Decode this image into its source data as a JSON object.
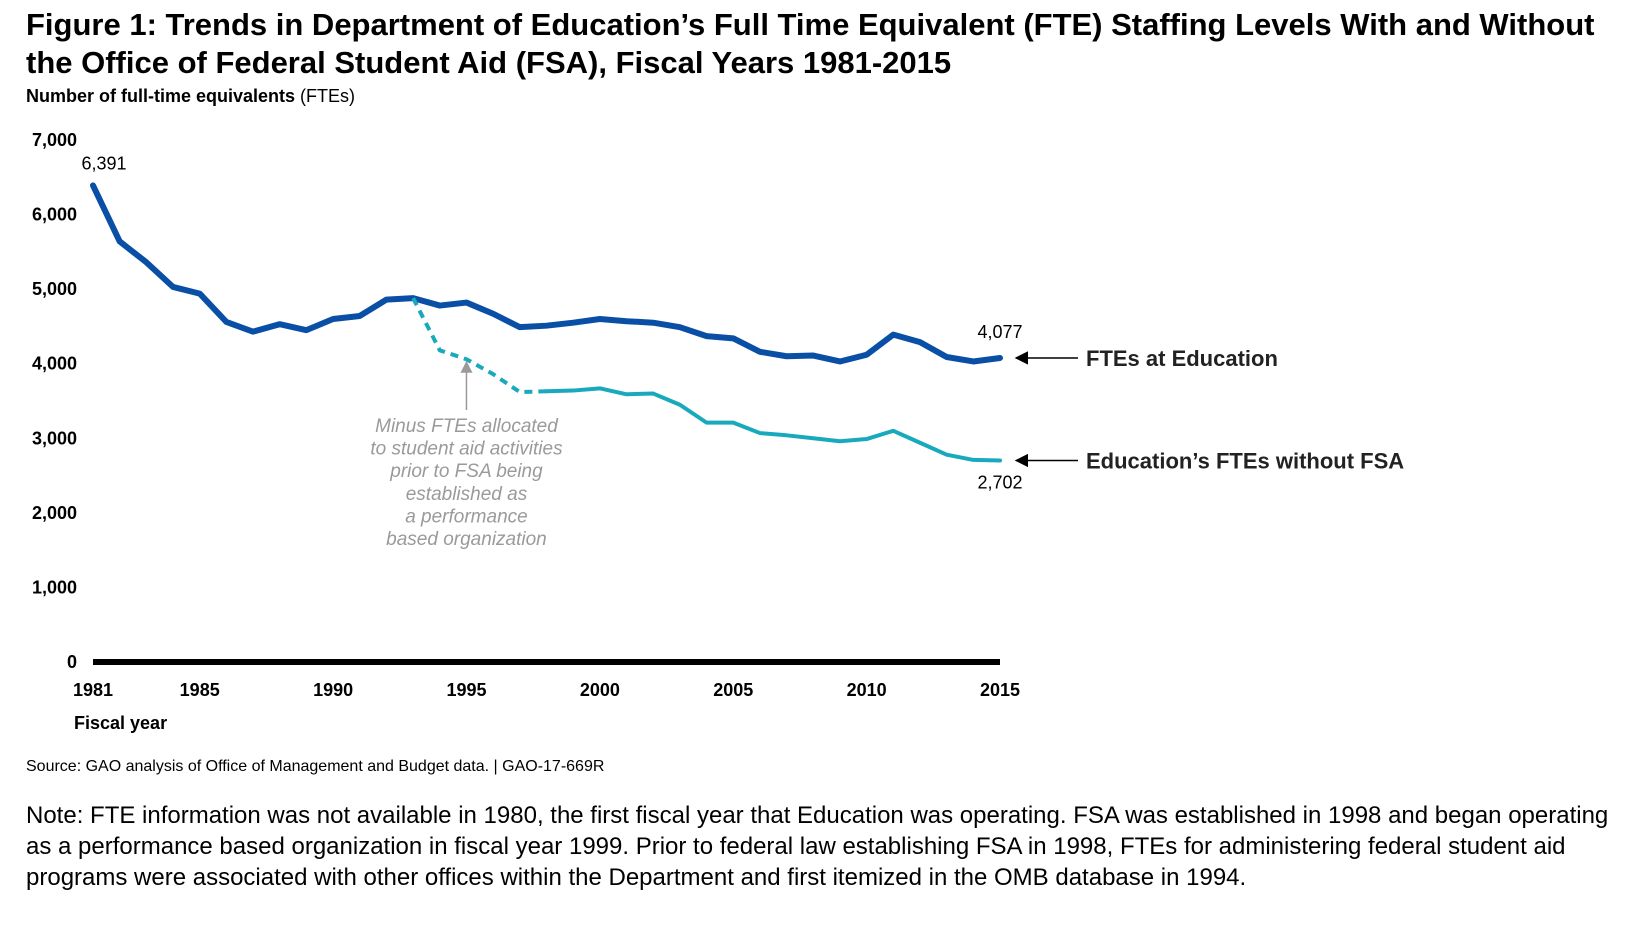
{
  "header": {
    "title": "Figure 1: Trends in Department of Education’s Full Time Equivalent (FTE) Staffing Levels With and Without the Office of Federal Student Aid (FSA), Fiscal Years 1981-2015",
    "unit_label_bold": "Number of full-time equivalents",
    "unit_label_rest": " (FTEs)"
  },
  "footer": {
    "source": "Source: GAO analysis of Office of Management and Budget data.  |  GAO-17-669R",
    "note": "Note: FTE information was not available in 1980, the first fiscal year that Education was operating. FSA was established in 1998 and began operating as a performance based organization in fiscal year 1999. Prior to federal law establishing FSA in 1998, FTEs for administering federal student aid programs were associated with other offices within the Department and first itemized in the OMB database in 1994."
  },
  "colors": {
    "with_fsa": "#0a4fa6",
    "without_fsa": "#19a9bd",
    "annotation": "#9a9a9a",
    "axis": "#000000"
  },
  "chart_data": {
    "type": "line",
    "title": "Figure 1: Trends in Department of Education’s Full Time Equivalent (FTE) Staffing Levels With and Without the Office of Federal Student Aid (FSA), Fiscal Years 1981-2015",
    "ylabel": "Number of full-time equivalents (FTEs)",
    "xlabel": "Fiscal year",
    "xlim": [
      1981,
      2015
    ],
    "ylim": [
      0,
      7000
    ],
    "y_ticks": [
      0,
      1000,
      2000,
      3000,
      4000,
      5000,
      6000,
      7000
    ],
    "y_tick_labels": [
      "0",
      "1,000",
      "2,000",
      "3,000",
      "4,000",
      "5,000",
      "6,000",
      "7,000"
    ],
    "x_ticks": [
      1981,
      1985,
      1990,
      1995,
      2000,
      2005,
      2010,
      2015
    ],
    "x_tick_labels": [
      "1981",
      "1985",
      "1990",
      "1995",
      "2000",
      "2005",
      "2010",
      "2015"
    ],
    "grid": false,
    "series": [
      {
        "name": "FTEs at Education",
        "x": [
          1981,
          1982,
          1983,
          1984,
          1985,
          1986,
          1987,
          1988,
          1989,
          1990,
          1991,
          1992,
          1993,
          1994,
          1995,
          1996,
          1997,
          1998,
          1999,
          2000,
          2001,
          2002,
          2003,
          2004,
          2005,
          2006,
          2007,
          2008,
          2009,
          2010,
          2011,
          2012,
          2013,
          2014,
          2015
        ],
        "values": [
          6391,
          5640,
          5360,
          5030,
          4940,
          4560,
          4430,
          4530,
          4450,
          4600,
          4640,
          4860,
          4880,
          4780,
          4820,
          4670,
          4490,
          4510,
          4550,
          4600,
          4570,
          4550,
          4490,
          4370,
          4340,
          4160,
          4100,
          4110,
          4030,
          4120,
          4390,
          4290,
          4090,
          4030,
          4077
        ]
      },
      {
        "name": "Education’s FTEs without FSA",
        "x": [
          1993,
          1994,
          1995,
          1996,
          1997,
          1998,
          1999,
          2000,
          2001,
          2002,
          2003,
          2004,
          2005,
          2006,
          2007,
          2008,
          2009,
          2010,
          2011,
          2012,
          2013,
          2014,
          2015
        ],
        "values": [
          4880,
          4180,
          4060,
          3860,
          3620,
          3630,
          3640,
          3670,
          3590,
          3600,
          3450,
          3210,
          3210,
          3070,
          3040,
          3000,
          2960,
          2990,
          3100,
          2940,
          2780,
          2710,
          2702
        ],
        "dashed_until": 1998
      }
    ],
    "data_labels": [
      {
        "x": 1981,
        "value": 6391,
        "text": "6,391"
      },
      {
        "x": 2015,
        "value": 4077,
        "text": "4,077"
      },
      {
        "x": 2015,
        "value": 2702,
        "text": "2,702"
      }
    ],
    "annotation": {
      "x": 1995,
      "value": 3800,
      "lines": [
        "Minus FTEs allocated",
        "to student aid activities",
        "prior to FSA being",
        "established as",
        "a performance",
        "based organization"
      ]
    }
  }
}
